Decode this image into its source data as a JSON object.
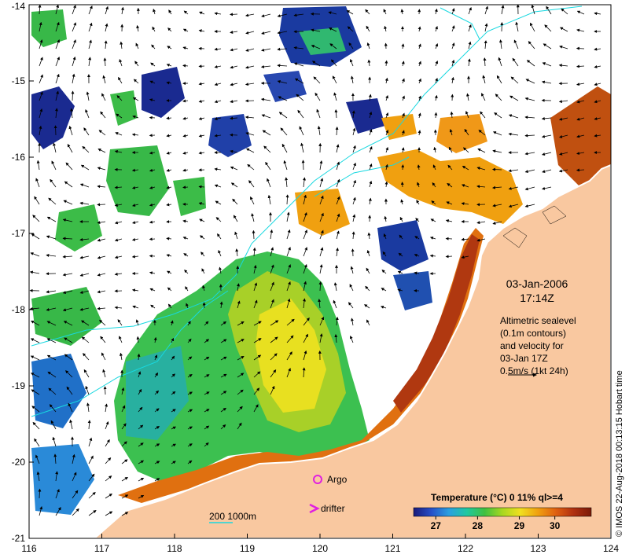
{
  "map": {
    "lon_ticks": [
      "116",
      "117",
      "118",
      "119",
      "120",
      "121",
      "122",
      "123",
      "124"
    ],
    "lat_ticks": [
      "-14",
      "-15",
      "-16",
      "-17",
      "-18",
      "-19",
      "-20",
      "-21"
    ],
    "lon_range": [
      116,
      124
    ],
    "lat_range": [
      -21,
      -14
    ],
    "colors": {
      "land": "#f9c8a0",
      "coast": "#ffffff",
      "contour": "#18d8e0",
      "arrow": "#000000"
    }
  },
  "info": {
    "date": "03-Jan-2006",
    "time": "17:14Z",
    "desc_lines": [
      "Altimetric sealevel",
      "(0.1m contours)",
      "and velocity for",
      "03-Jan 17Z",
      "0.5m/s (1kt 24h)"
    ]
  },
  "legend": {
    "title": "Temperature (°C) 0 11% ql>=4",
    "ticks": [
      "27",
      "28",
      "29",
      "30"
    ],
    "colors": [
      "#1a1a7a",
      "#2850c8",
      "#2aa0e0",
      "#20c8a0",
      "#40c040",
      "#a8d820",
      "#f0e020",
      "#f0a010",
      "#e06010",
      "#b03010",
      "#7a1a08"
    ]
  },
  "markers": {
    "argo_label": "Argo",
    "drifter_label": "drifter",
    "argo_color": "#e020e0",
    "drifter_color": "#e020e0"
  },
  "bathy": {
    "label": "200  1000m"
  },
  "credit": {
    "text": "© IMOS 22-Aug-2018 00:13:15 Hobart time"
  }
}
